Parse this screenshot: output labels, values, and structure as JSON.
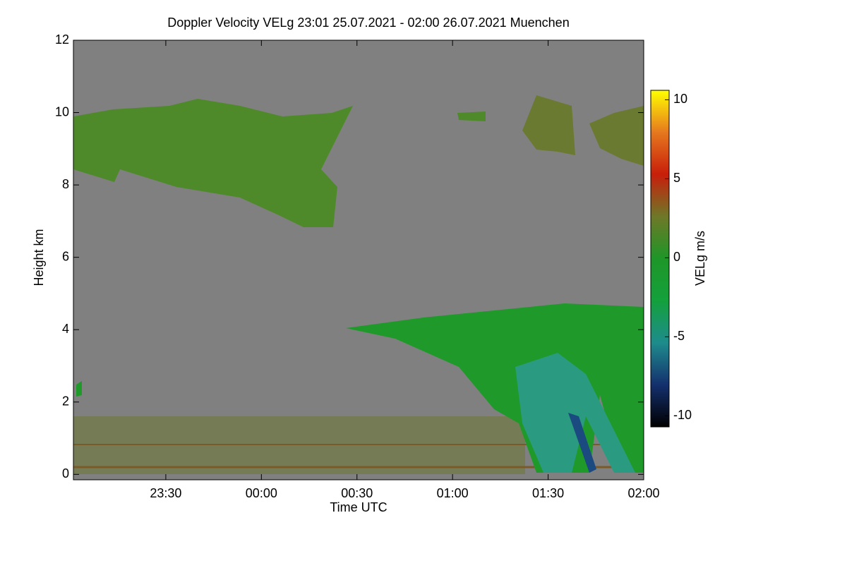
{
  "chart_data": {
    "type": "heatmap",
    "title": "Doppler Velocity VELg   23:01 25.07.2021 - 02:00 26.07.2021 Muenchen",
    "x_label": "Time UTC",
    "y_label": "Height km",
    "colorbar_label": "VELg m/s",
    "xlim": [
      "23:01",
      "02:00"
    ],
    "xticks": [
      "23:30",
      "00:00",
      "00:30",
      "01:00",
      "01:30",
      "02:00"
    ],
    "ylim": [
      -0.15,
      12
    ],
    "yticks": [
      0,
      2,
      4,
      6,
      8,
      10,
      12
    ],
    "clim": [
      -10.7,
      10.6
    ],
    "cticks": [
      -10,
      -5,
      0,
      5,
      10
    ],
    "colormap": [
      "#000000",
      "#14306e",
      "#1e8c8c",
      "#14a03c",
      "#1e9628",
      "#6e7828",
      "#c81e0a",
      "#e6781e",
      "#ffff00"
    ],
    "background": "#808080"
  }
}
